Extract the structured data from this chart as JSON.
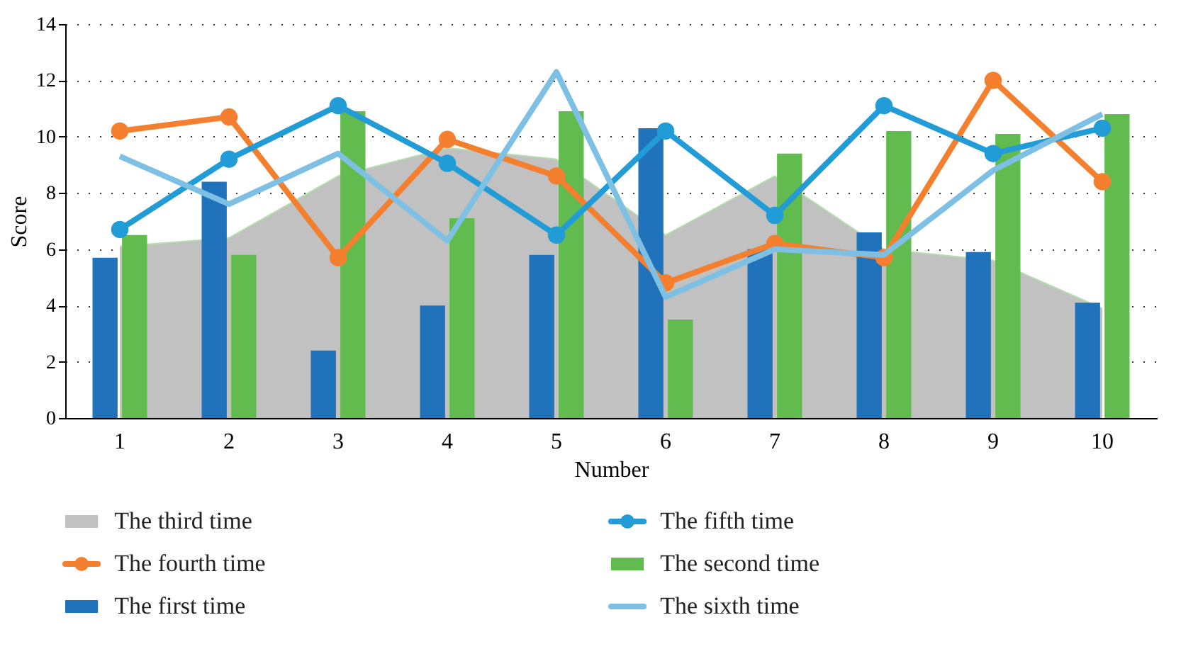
{
  "chart_data": {
    "type": "bar",
    "xlabel": "Number",
    "ylabel": "Score",
    "categories": [
      "1",
      "2",
      "3",
      "4",
      "5",
      "6",
      "7",
      "8",
      "9",
      "10"
    ],
    "ylim": [
      0,
      14
    ],
    "yticks": [
      0,
      2,
      4,
      6,
      8,
      10,
      12,
      14
    ],
    "grid": "y",
    "legend": "bottom",
    "series": [
      {
        "name": "The third time",
        "type": "area",
        "color": "#c0c1c0",
        "values": [
          6.1,
          6.4,
          8.6,
          9.6,
          9.2,
          6.5,
          8.6,
          6.0,
          5.6,
          3.9
        ]
      },
      {
        "name": "The fourth time",
        "type": "line",
        "marker": "circle",
        "color": "#f47f2e",
        "values": [
          10.2,
          10.7,
          5.7,
          9.9,
          8.6,
          4.8,
          6.2,
          5.7,
          12.0,
          8.4
        ]
      },
      {
        "name": "The first time",
        "color": "#2073bb",
        "values": [
          5.7,
          8.4,
          2.4,
          4.0,
          5.8,
          10.3,
          6.0,
          6.6,
          5.9,
          4.1
        ]
      },
      {
        "name": "The fifth time",
        "type": "line",
        "marker": "circle",
        "color": "#229cd6",
        "values": [
          6.7,
          9.2,
          11.1,
          9.05,
          6.5,
          10.2,
          7.2,
          11.1,
          9.4,
          10.3
        ]
      },
      {
        "name": "The second time",
        "color": "#62bb4e",
        "values": [
          6.5,
          5.8,
          10.9,
          7.1,
          10.9,
          3.5,
          9.4,
          10.2,
          10.1,
          10.8
        ]
      },
      {
        "name": "The sixth time",
        "type": "line",
        "marker": "none",
        "color": "#7dc0e4",
        "values": [
          9.3,
          7.6,
          9.4,
          6.3,
          12.3,
          4.3,
          6.0,
          5.8,
          8.8,
          10.8
        ]
      }
    ]
  }
}
